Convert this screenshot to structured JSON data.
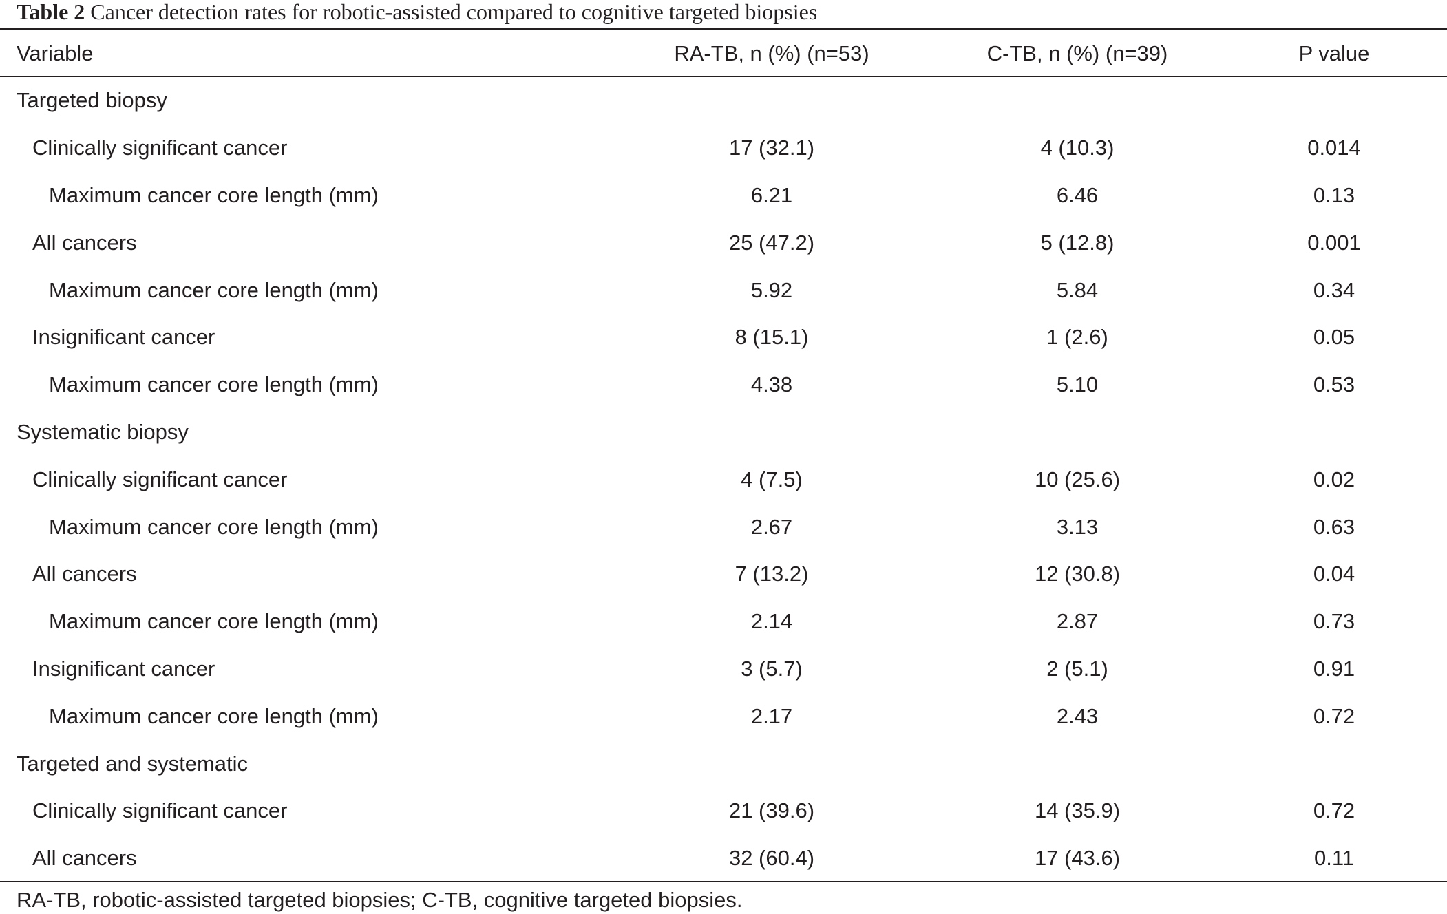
{
  "caption": {
    "label": "Table 2",
    "text": "Cancer detection rates for robotic-assisted compared to cognitive targeted biopsies"
  },
  "table": {
    "headers": [
      "Variable",
      "RA-TB, n (%) (n=53)",
      "C-TB, n (%) (n=39)",
      "P value"
    ],
    "rows": [
      {
        "level": 0,
        "cells": [
          "Targeted biopsy",
          "",
          "",
          ""
        ]
      },
      {
        "level": 1,
        "cells": [
          "Clinically significant cancer",
          "17 (32.1)",
          "4 (10.3)",
          "0.014"
        ]
      },
      {
        "level": 2,
        "cells": [
          "Maximum cancer core length (mm)",
          "6.21",
          "6.46",
          "0.13"
        ]
      },
      {
        "level": 1,
        "cells": [
          "All cancers",
          "25 (47.2)",
          "5 (12.8)",
          "0.001"
        ]
      },
      {
        "level": 2,
        "cells": [
          "Maximum cancer core length (mm)",
          "5.92",
          "5.84",
          "0.34"
        ]
      },
      {
        "level": 1,
        "cells": [
          "Insignificant cancer",
          "8 (15.1)",
          "1 (2.6)",
          "0.05"
        ]
      },
      {
        "level": 2,
        "cells": [
          "Maximum cancer core length (mm)",
          "4.38",
          "5.10",
          "0.53"
        ]
      },
      {
        "level": 0,
        "cells": [
          "Systematic biopsy",
          "",
          "",
          ""
        ]
      },
      {
        "level": 1,
        "cells": [
          "Clinically significant cancer",
          "4 (7.5)",
          "10 (25.6)",
          "0.02"
        ]
      },
      {
        "level": 2,
        "cells": [
          "Maximum cancer core length (mm)",
          "2.67",
          "3.13",
          "0.63"
        ]
      },
      {
        "level": 1,
        "cells": [
          "All cancers",
          "7 (13.2)",
          "12 (30.8)",
          "0.04"
        ]
      },
      {
        "level": 2,
        "cells": [
          "Maximum cancer core length (mm)",
          "2.14",
          "2.87",
          "0.73"
        ]
      },
      {
        "level": 1,
        "cells": [
          "Insignificant cancer",
          "3 (5.7)",
          "2 (5.1)",
          "0.91"
        ]
      },
      {
        "level": 2,
        "cells": [
          "Maximum cancer core length (mm)",
          "2.17",
          "2.43",
          "0.72"
        ]
      },
      {
        "level": 0,
        "cells": [
          "Targeted and systematic",
          "",
          "",
          ""
        ]
      },
      {
        "level": 1,
        "cells": [
          "Clinically significant cancer",
          "21 (39.6)",
          "14 (35.9)",
          "0.72"
        ]
      },
      {
        "level": 1,
        "cells": [
          "All cancers",
          "32 (60.4)",
          "17 (43.6)",
          "0.11"
        ]
      }
    ]
  },
  "footnote": "RA-TB, robotic-assisted targeted biopsies; C-TB, cognitive targeted biopsies.",
  "colors": {
    "text": "#231f20",
    "rule": "#231f20",
    "background": "#ffffff"
  }
}
